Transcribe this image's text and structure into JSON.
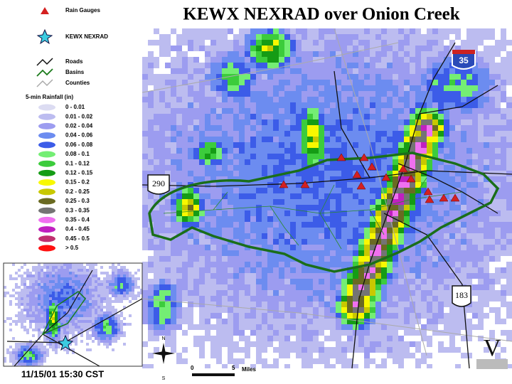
{
  "title": "KEWX NEXRAD over Onion Creek",
  "legend": {
    "symbols": [
      {
        "label": "Rain Gauges"
      },
      {
        "label": "KEWX NEXRAD"
      },
      {
        "label": "Roads"
      },
      {
        "label": "Basins"
      },
      {
        "label": "Counties"
      }
    ],
    "rainfall_title": "5-min Rainfall (in)",
    "classes": [
      {
        "label": "0 - 0.01",
        "color": "#dcdcf2"
      },
      {
        "label": "0.01 - 0.02",
        "color": "#bcbcf0"
      },
      {
        "label": "0.02 - 0.04",
        "color": "#9c9cf0"
      },
      {
        "label": "0.04 - 0.06",
        "color": "#6c8cf0"
      },
      {
        "label": "0.06 - 0.08",
        "color": "#3c5ce8"
      },
      {
        "label": "0.08 - 0.1",
        "color": "#74ee74"
      },
      {
        "label": "0.1 - 0.12",
        "color": "#3ccc3c"
      },
      {
        "label": "0.12 - 0.15",
        "color": "#159c15"
      },
      {
        "label": "0.15 - 0.2",
        "color": "#f8f800"
      },
      {
        "label": "0.2 - 0.25",
        "color": "#c8c800"
      },
      {
        "label": "0.25 - 0.3",
        "color": "#6a6a22"
      },
      {
        "label": "0.3 - 0.35",
        "color": "#747474"
      },
      {
        "label": "0.35 - 0.4",
        "color": "#f070f0"
      },
      {
        "label": "0.4 - 0.45",
        "color": "#c020c0"
      },
      {
        "label": "0.45 - 0.5",
        "color": "#c03070"
      },
      {
        "label": "> 0.5",
        "color": "#ff1010"
      }
    ]
  },
  "timestamp": "11/15/01 15:30 CST",
  "map_labels": {
    "highways": [
      "35",
      "290",
      "183"
    ],
    "scale": [
      "0",
      "5",
      "Miles"
    ],
    "compass": [
      "N",
      "S"
    ],
    "logo": "V"
  }
}
